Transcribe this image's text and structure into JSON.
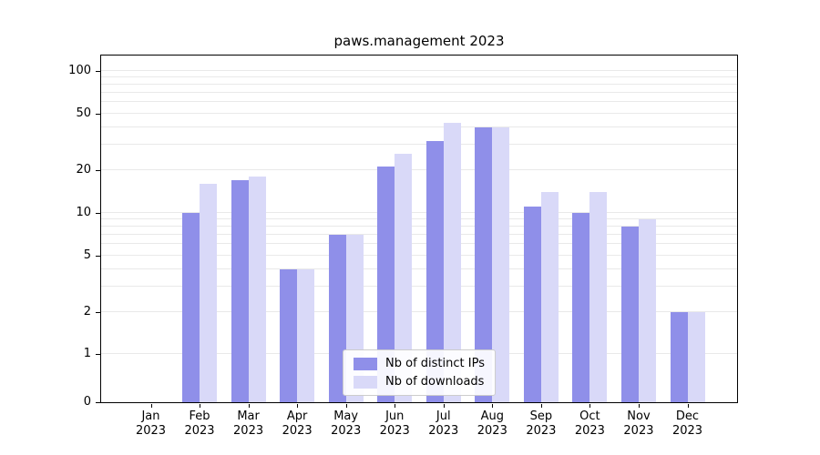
{
  "title": "paws.management 2023",
  "legend": {
    "items": [
      {
        "label": "Nb of distinct IPs",
        "color": "#8f8fe9"
      },
      {
        "label": "Nb of downloads",
        "color": "#d9d9f8"
      }
    ]
  },
  "axes": {
    "yticks": [
      0,
      1,
      2,
      5,
      10,
      20,
      50,
      100
    ],
    "gridlines": [
      1,
      2,
      3,
      4,
      5,
      6,
      7,
      8,
      9,
      10,
      20,
      30,
      40,
      50,
      60,
      70,
      80,
      90,
      100
    ]
  },
  "chart_data": {
    "type": "bar",
    "title": "paws.management 2023",
    "categories": [
      "Jan 2023",
      "Feb 2023",
      "Mar 2023",
      "Apr 2023",
      "May 2023",
      "Jun 2023",
      "Jul 2023",
      "Aug 2023",
      "Sep 2023",
      "Oct 2023",
      "Nov 2023",
      "Dec 2023"
    ],
    "series": [
      {
        "name": "Nb of distinct IPs",
        "color": "#8f8fe9",
        "values": [
          0,
          10,
          17,
          4,
          7,
          21,
          32,
          40,
          11,
          10,
          8,
          2
        ]
      },
      {
        "name": "Nb of downloads",
        "color": "#d9d9f8",
        "values": [
          0,
          16,
          18,
          4,
          7,
          26,
          43,
          40,
          14,
          14,
          9,
          2
        ]
      }
    ],
    "xlabel": "",
    "ylabel": "",
    "yscale": "log-with-zero",
    "ylim": [
      0,
      110
    ],
    "grid": true,
    "legend_position": "lower center"
  }
}
